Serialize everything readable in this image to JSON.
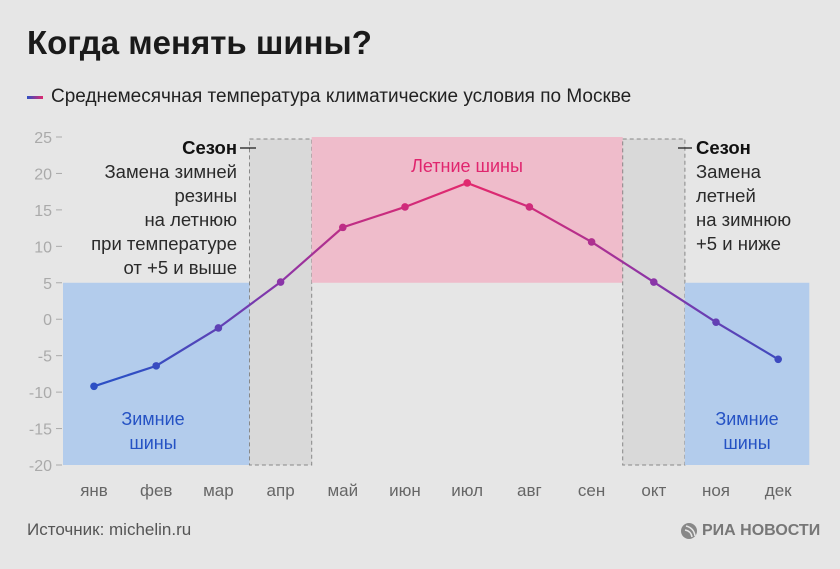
{
  "title": "Когда менять шины?",
  "legend": {
    "label": "Среднемесячная температура климатические условия по Москве"
  },
  "notes": {
    "spring": {
      "heading": "Сезон",
      "lines": [
        "Замена зимней",
        "резины",
        "на летнюю",
        "при температуре",
        "от +5 и выше"
      ]
    },
    "autumn": {
      "heading": "Сезон",
      "lines": [
        "Замена",
        "летней",
        "на зимнюю",
        "+5 и ниже"
      ]
    }
  },
  "bands": {
    "summer": "Летние шины",
    "winter_left": [
      "Зимние",
      "шины"
    ],
    "winter_right": [
      "Зимние",
      "шины"
    ]
  },
  "source": "Источник: michelin.ru",
  "logo": "РИА НОВОСТИ",
  "colors": {
    "winter": "#b3ccec",
    "summer": "#efbccb",
    "season": "#d9d9d9",
    "winter_text": "#2552c4",
    "summer_text": "#e0256e",
    "line_low": "#2d4fc4",
    "line_high": "#e0296f"
  },
  "chart_data": {
    "type": "line",
    "categories": [
      "янв",
      "фев",
      "мар",
      "апр",
      "май",
      "июн",
      "июл",
      "авг",
      "сен",
      "окт",
      "ноя",
      "дек"
    ],
    "series": [
      {
        "name": "Среднемесячная температура климатические условия по Москве",
        "values": [
          -9.2,
          -6.4,
          -1.2,
          5.1,
          12.6,
          15.4,
          18.7,
          15.4,
          10.6,
          5.1,
          -0.4,
          -5.5
        ]
      }
    ],
    "yticks": [
      25,
      20,
      15,
      10,
      5,
      0,
      -5,
      -10,
      -15,
      -20
    ],
    "ylim": [
      -20,
      25
    ],
    "regions": [
      {
        "kind": "winter",
        "from_month": "янв",
        "to_month": "мар",
        "y": [
          -20,
          5
        ]
      },
      {
        "kind": "season",
        "from_month": "апр",
        "to_month": "апр",
        "y": [
          -20,
          25
        ]
      },
      {
        "kind": "summer",
        "from_month": "май",
        "to_month": "сен",
        "y": [
          5,
          25
        ]
      },
      {
        "kind": "season",
        "from_month": "окт",
        "to_month": "окт",
        "y": [
          -20,
          25
        ]
      },
      {
        "kind": "winter",
        "from_month": "ноя",
        "to_month": "дек",
        "y": [
          -20,
          5
        ]
      }
    ]
  }
}
